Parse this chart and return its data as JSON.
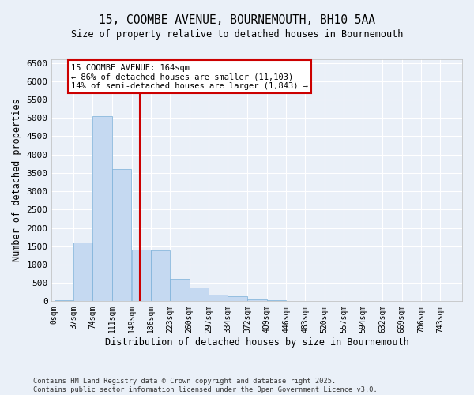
{
  "title_line1": "15, COOMBE AVENUE, BOURNEMOUTH, BH10 5AA",
  "title_line2": "Size of property relative to detached houses in Bournemouth",
  "xlabel": "Distribution of detached houses by size in Bournemouth",
  "ylabel": "Number of detached properties",
  "bar_labels": [
    "0sqm",
    "37sqm",
    "74sqm",
    "111sqm",
    "149sqm",
    "186sqm",
    "223sqm",
    "260sqm",
    "297sqm",
    "334sqm",
    "372sqm",
    "409sqm",
    "446sqm",
    "483sqm",
    "520sqm",
    "557sqm",
    "594sqm",
    "632sqm",
    "669sqm",
    "706sqm",
    "743sqm"
  ],
  "bar_values": [
    25,
    1600,
    5050,
    3600,
    1400,
    1380,
    620,
    380,
    175,
    130,
    60,
    20,
    10,
    5,
    3,
    2,
    1,
    1,
    0,
    0,
    0
  ],
  "bar_color": "#c5d9f1",
  "bar_edgecolor": "#7ab0d8",
  "vline_color": "#cc0000",
  "annotation_text": "15 COOMBE AVENUE: 164sqm\n← 86% of detached houses are smaller (11,103)\n14% of semi-detached houses are larger (1,843) →",
  "annotation_box_color": "#ffffff",
  "annotation_box_edgecolor": "#cc0000",
  "ylim": [
    0,
    6600
  ],
  "yticks": [
    0,
    500,
    1000,
    1500,
    2000,
    2500,
    3000,
    3500,
    4000,
    4500,
    5000,
    5500,
    6000,
    6500
  ],
  "footer_text": "Contains HM Land Registry data © Crown copyright and database right 2025.\nContains public sector information licensed under the Open Government Licence v3.0.",
  "background_color": "#eaf0f8",
  "grid_color": "#ffffff",
  "bin_width": 37,
  "vline_x": 164
}
